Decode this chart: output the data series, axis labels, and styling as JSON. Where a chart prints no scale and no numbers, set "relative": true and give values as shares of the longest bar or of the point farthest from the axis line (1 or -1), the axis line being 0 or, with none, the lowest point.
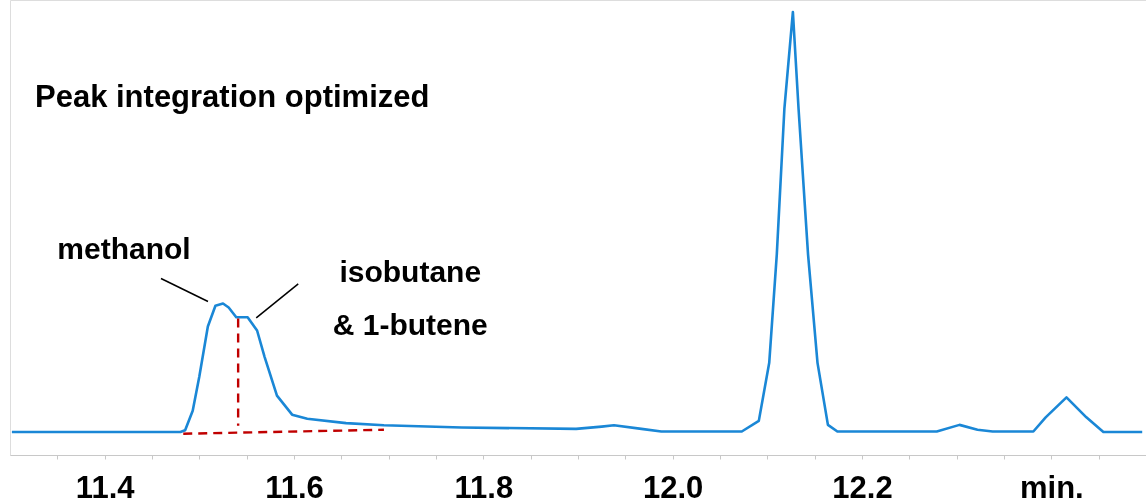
{
  "chart_data": {
    "type": "line",
    "title": "Peak integration optimized",
    "relative": true,
    "xlim": [
      11.3,
      12.5
    ],
    "xticks": [
      {
        "value": 11.35,
        "label": null
      },
      11.4,
      {
        "value": 11.45,
        "label": null
      },
      {
        "value": 11.5,
        "label": null
      },
      {
        "value": 11.55,
        "label": null
      },
      11.6,
      {
        "value": 11.65,
        "label": null
      },
      {
        "value": 11.7,
        "label": null
      },
      {
        "value": 11.75,
        "label": null
      },
      11.8,
      {
        "value": 11.85,
        "label": null
      },
      {
        "value": 11.9,
        "label": null
      },
      {
        "value": 11.95,
        "label": null
      },
      {
        "value": 12,
        "label": "12.0"
      },
      {
        "value": 12.05,
        "label": null
      },
      {
        "value": 12.1,
        "label": null
      },
      {
        "value": 12.15,
        "label": null
      },
      12.2,
      {
        "value": 12.25,
        "label": null
      },
      {
        "value": 12.3,
        "label": null
      },
      {
        "value": 12.35,
        "label": null
      },
      {
        "value": 12.4,
        "label": "min."
      },
      {
        "value": 12.45,
        "label": null
      }
    ],
    "annotations": [
      {
        "text": "methanol",
        "x": 11.525,
        "y": 0.342
      },
      {
        "text": "isobutane\n& 1-butene",
        "x": 11.558,
        "y": 0.305
      }
    ],
    "series": [
      {
        "color": "#1a87d6",
        "line_style": "solid",
        "x": [
          11.302,
          11.396,
          11.48,
          11.485,
          11.493,
          11.5,
          11.509,
          11.517,
          11.525,
          11.531,
          11.539,
          11.551,
          11.561,
          11.569,
          11.582,
          11.598,
          11.614,
          11.655,
          11.695,
          11.777,
          11.898,
          11.925,
          11.938,
          11.967,
          11.988,
          12.073,
          12.091,
          12.102,
          12.11,
          12.118,
          12.127,
          12.133,
          12.143,
          12.153,
          12.164,
          12.174,
          12.279,
          12.303,
          12.322,
          12.338,
          12.381,
          12.394,
          12.416,
          12.437,
          12.455,
          12.496
        ],
        "values": [
          0.052,
          0.052,
          0.052,
          0.056,
          0.1,
          0.177,
          0.29,
          0.337,
          0.342,
          0.333,
          0.311,
          0.311,
          0.281,
          0.221,
          0.134,
          0.091,
          0.082,
          0.072,
          0.067,
          0.062,
          0.059,
          0.064,
          0.067,
          0.059,
          0.053,
          0.053,
          0.077,
          0.208,
          0.453,
          0.781,
          1.0,
          0.781,
          0.453,
          0.208,
          0.068,
          0.053,
          0.053,
          0.068,
          0.057,
          0.053,
          0.053,
          0.085,
          0.13,
          0.085,
          0.052,
          0.052
        ]
      },
      {
        "type": "line",
        "color": "#c00000",
        "line_style": "dashed",
        "x": [
          11.541,
          11.541
        ],
        "values": [
          0.308,
          0.066
        ]
      },
      {
        "type": "line",
        "color": "#c00000",
        "line_style": "dashed",
        "x": [
          11.483,
          11.695
        ],
        "values": [
          0.048,
          0.057
        ]
      }
    ]
  }
}
